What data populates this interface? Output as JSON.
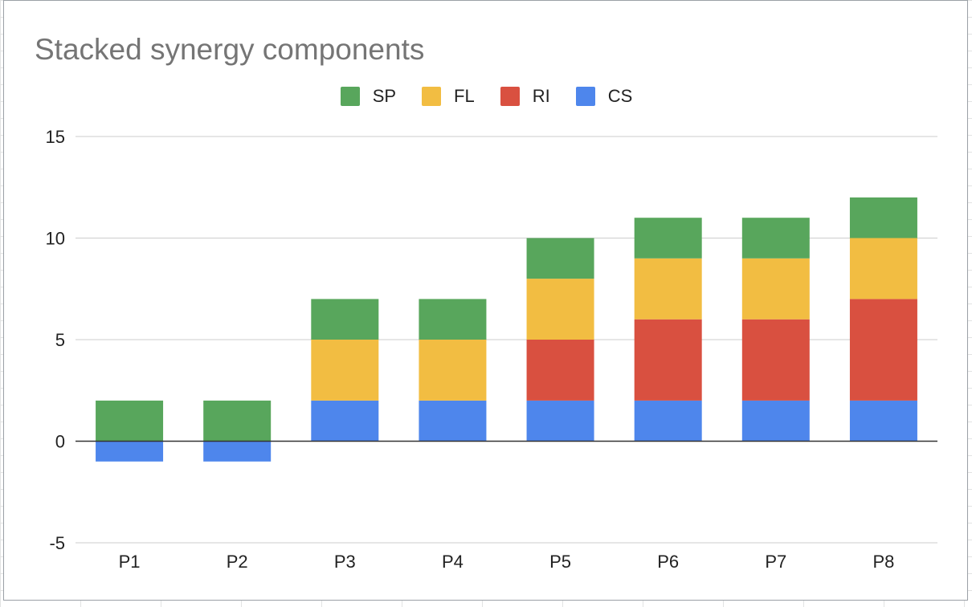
{
  "chart_data": {
    "type": "bar",
    "stacked": true,
    "title": "Stacked synergy components",
    "xlabel": "",
    "ylabel": "",
    "categories": [
      "P1",
      "P2",
      "P3",
      "P4",
      "P5",
      "P6",
      "P7",
      "P8"
    ],
    "series": [
      {
        "name": "CS",
        "color": "#4e86ec",
        "values": [
          -1,
          -1,
          2,
          2,
          2,
          2,
          2,
          2
        ]
      },
      {
        "name": "RI",
        "color": "#d95040",
        "values": [
          0,
          0,
          0,
          0,
          3,
          4,
          4,
          5
        ]
      },
      {
        "name": "FL",
        "color": "#f2bd42",
        "values": [
          0,
          0,
          3,
          3,
          3,
          3,
          3,
          3
        ]
      },
      {
        "name": "SP",
        "color": "#58a65c",
        "values": [
          2,
          2,
          2,
          2,
          2,
          2,
          2,
          2
        ]
      }
    ],
    "legend_order": [
      "SP",
      "FL",
      "RI",
      "CS"
    ],
    "ylim": [
      -5,
      15
    ],
    "yticks": [
      -5,
      0,
      5,
      10,
      15
    ],
    "grid": true,
    "legend_position": "top-center"
  }
}
